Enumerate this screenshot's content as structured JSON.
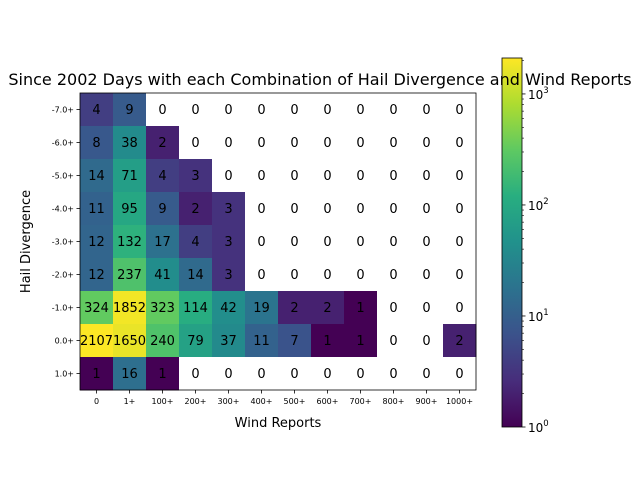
{
  "chart_data": {
    "type": "heatmap",
    "title": "Since 2002 Days with each Combination of Hail Divergence and Wind Reports",
    "xlabel": "Wind Reports",
    "ylabel": "Hail Divergence",
    "x_categories": [
      "0",
      "1+",
      "100+",
      "200+",
      "300+",
      "400+",
      "500+",
      "600+",
      "700+",
      "800+",
      "900+",
      "1000+"
    ],
    "y_categories": [
      "-7.0+",
      "-6.0+",
      "-5.0+",
      "-4.0+",
      "-3.0+",
      "-2.0+",
      "-1.0+",
      "0.0+",
      "1.0+"
    ],
    "values": [
      [
        4,
        9,
        0,
        0,
        0,
        0,
        0,
        0,
        0,
        0,
        0,
        0
      ],
      [
        8,
        38,
        2,
        0,
        0,
        0,
        0,
        0,
        0,
        0,
        0,
        0
      ],
      [
        14,
        71,
        4,
        3,
        0,
        0,
        0,
        0,
        0,
        0,
        0,
        0
      ],
      [
        11,
        95,
        9,
        2,
        3,
        0,
        0,
        0,
        0,
        0,
        0,
        0
      ],
      [
        12,
        132,
        17,
        4,
        3,
        0,
        0,
        0,
        0,
        0,
        0,
        0
      ],
      [
        12,
        237,
        41,
        14,
        3,
        0,
        0,
        0,
        0,
        0,
        0,
        0
      ],
      [
        324,
        1852,
        323,
        114,
        42,
        19,
        2,
        2,
        1,
        0,
        0,
        0
      ],
      [
        2107,
        1650,
        240,
        79,
        37,
        11,
        7,
        1,
        1,
        0,
        0,
        2
      ],
      [
        1,
        16,
        1,
        0,
        0,
        0,
        0,
        0,
        0,
        0,
        0,
        0
      ]
    ],
    "color_scale": "log",
    "colormap": "viridis",
    "zero_color": "#ffffff",
    "colorbar": {
      "range": [
        1,
        2107
      ],
      "ticks": [
        {
          "value": 1,
          "base": "10",
          "exp": "0"
        },
        {
          "value": 10,
          "base": "10",
          "exp": "1"
        },
        {
          "value": 100,
          "base": "10",
          "exp": "2"
        },
        {
          "value": 1000,
          "base": "10",
          "exp": "3"
        }
      ]
    }
  }
}
